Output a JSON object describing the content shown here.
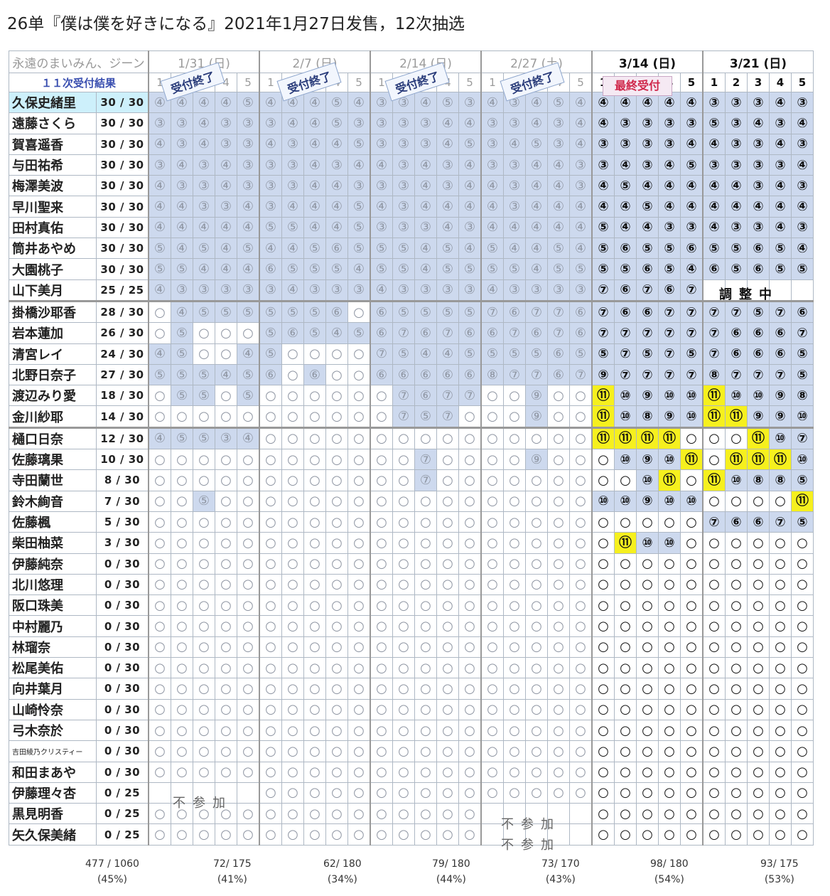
{
  "title": "26单『僕は僕を好きになる』2021年1月27日发售，12次抽选",
  "table": {
    "caption": "永遠のまいみん、ジーン",
    "header_label": "１１次受付結果",
    "dates": [
      "1/31 (日)",
      "2/7 (日)",
      "2/14 (日)",
      "2/27 (土)",
      "3/14 (日)",
      "3/21 (日)"
    ],
    "slots": [
      "1",
      "2",
      "3",
      "4",
      "5"
    ],
    "stamps": {
      "closed": "受付終了",
      "final": "最終受付"
    },
    "rows": [
      {
        "name": "久保史緒里",
        "count": "30 / 30",
        "hl": true,
        "cells": [
          "④④④④⑤",
          "④④④⑤④",
          "③③④⑤③",
          "④③④⑤④",
          "④④④④④",
          "③③③④③"
        ],
        "bg": [
          "BBBBB",
          "BBBBB",
          "BBBBB",
          "BBBBB",
          "BBBBB",
          "BBBBB"
        ]
      },
      {
        "name": "遠藤さくら",
        "count": "30 / 30",
        "cells": [
          "③③④③③",
          "③④④⑤③",
          "③③③④④",
          "③③④③④",
          "④③③③③",
          "⑤③④③④"
        ],
        "bg": [
          "BBBBB",
          "BBBBB",
          "BBBBB",
          "BBBBB",
          "BBBBB",
          "BBBBB"
        ]
      },
      {
        "name": "賀喜遥香",
        "count": "30 / 30",
        "cells": [
          "④③④③③",
          "④③④④⑤",
          "③③③④⑤",
          "③④⑤③④",
          "③③③③④",
          "④③③④③"
        ],
        "bg": [
          "BBBBB",
          "BBBBB",
          "BBBBB",
          "BBBBB",
          "BBBBB",
          "BBBBB"
        ]
      },
      {
        "name": "与田祐希",
        "count": "30 / 30",
        "cells": [
          "③④③④③",
          "③③④③④",
          "④③④③④",
          "③③④④③",
          "③④③④⑤",
          "③③③③④"
        ],
        "bg": [
          "BBBBB",
          "BBBBB",
          "BBBBB",
          "BBBBB",
          "BBBBB",
          "BBBBB"
        ]
      },
      {
        "name": "梅澤美波",
        "count": "30 / 30",
        "cells": [
          "④③③④③",
          "③③④④③",
          "③③④③④",
          "④③④④③",
          "④⑤④④④",
          "④④③④③"
        ],
        "bg": [
          "BBBBB",
          "BBBBB",
          "BBBBB",
          "BBBBB",
          "BBBBB",
          "BBBBB"
        ]
      },
      {
        "name": "早川聖来",
        "count": "30 / 30",
        "cells": [
          "④④③③④",
          "③④④④⑤",
          "④③④④④",
          "④③④④④",
          "④④⑤④④",
          "④④④④④"
        ],
        "bg": [
          "BBBBB",
          "BBBBB",
          "BBBBB",
          "BBBBB",
          "BBBBB",
          "BBBBB"
        ]
      },
      {
        "name": "田村真佑",
        "count": "30 / 30",
        "cells": [
          "④④④④④",
          "⑤⑤④④⑤",
          "③③③④③",
          "④④④④④",
          "⑤④④③③",
          "④③③④③"
        ],
        "bg": [
          "BBBBB",
          "BBBBB",
          "BBBBB",
          "BBBBB",
          "BBBBB",
          "BBBBB"
        ]
      },
      {
        "name": "筒井あやめ",
        "count": "30 / 30",
        "cells": [
          "⑤④⑤④⑤",
          "④④⑤⑥⑤",
          "⑤⑤④⑤④",
          "⑤④④⑤④",
          "⑤⑥⑤⑤⑥",
          "⑤⑤⑥⑤④"
        ],
        "bg": [
          "BBBBB",
          "BBBBB",
          "BBBBB",
          "BBBBB",
          "BBBBB",
          "BBBBB"
        ]
      },
      {
        "name": "大園桃子",
        "count": "30 / 30",
        "cells": [
          "⑤⑤④④④",
          "⑥⑤⑤⑤④",
          "⑤⑤④⑤⑤",
          "⑤⑤④⑤⑤",
          "⑤⑤⑥⑤④",
          "⑥⑤⑥⑤⑤"
        ],
        "bg": [
          "BBBBB",
          "BBBBB",
          "BBBBB",
          "BBBBB",
          "BBBBB",
          "BBBBB"
        ]
      },
      {
        "name": "山下美月",
        "count": "25 / 25",
        "cells": [
          "④③③③③",
          "③④③③③",
          "④③③③③",
          "④③③③③",
          "⑦⑥⑦⑥⑦",
          "     "
        ],
        "bg": [
          "BBBBB",
          "BBBBB",
          "BBBBB",
          "BBBBB",
          "BBBBB",
          "-----"
        ]
      },
      {
        "name": "掛橋沙耶香",
        "count": "28 / 30",
        "sep": true,
        "cells": [
          "○④⑤⑤⑤",
          "⑤⑤⑤⑥○",
          "⑥⑤⑤⑤⑤",
          "⑦⑥⑦⑦⑥",
          "⑦⑥⑥⑦⑦",
          "⑦⑦⑤⑦⑥"
        ],
        "bg": [
          "-BBBB",
          "BBBB-",
          "BBBBB",
          "BBBBB",
          "BBBBB",
          "BBBBB"
        ]
      },
      {
        "name": "岩本蓮加",
        "count": "26 / 30",
        "cells": [
          "○⑤○○○",
          "⑤⑥⑤④⑤",
          "⑥⑦⑥⑦⑥",
          "⑥⑦⑥⑦⑥",
          "⑦⑦⑦⑦⑦",
          "⑦⑥⑥⑥⑦"
        ],
        "bg": [
          "-B---",
          "BBBBB",
          "BBBBB",
          "BBBBB",
          "BBBBB",
          "BBBBB"
        ]
      },
      {
        "name": "清宮レイ",
        "count": "24 / 30",
        "cells": [
          "④⑤○○④",
          "⑤○○○○",
          "⑦⑤④④⑤",
          "⑤⑤⑤⑥⑤",
          "⑤⑦⑤⑦⑤",
          "⑦⑥⑥⑥⑤"
        ],
        "bg": [
          "BB--B",
          "B----",
          "BBBBB",
          "BBBBB",
          "BBBBB",
          "BBBBB"
        ]
      },
      {
        "name": "北野日奈子",
        "count": "27 / 30",
        "cells": [
          "⑤⑤⑤④⑤",
          "⑥○⑥○○",
          "⑥⑥⑥⑥⑥",
          "⑧⑦⑦⑥⑦",
          "⑨⑦⑦⑦⑦",
          "⑧⑦⑦⑦⑤"
        ],
        "bg": [
          "BBBBB",
          "B-B--",
          "BBBBB",
          "BBBBB",
          "BBBBB",
          "BBBBB"
        ]
      },
      {
        "name": "渡辺みり愛",
        "count": "18 / 30",
        "cells": [
          "○⑤⑤○⑤",
          "○○○○○",
          "○⑦⑥⑦⑦",
          "○○⑨○○",
          "⑪⑩⑨⑩⑩",
          "⑪⑩⑩⑨⑧"
        ],
        "bg": [
          "-BB-B",
          "-----",
          "-BBBB",
          "--B--",
          "YBBBB",
          "YBBBB"
        ]
      },
      {
        "name": "金川紗耶",
        "count": "14 / 30",
        "cells": [
          "○○○○○",
          "○○○○○",
          "○⑦⑤⑦○",
          "○○⑨○○",
          "⑪⑩⑧⑨⑩",
          "⑪⑪⑨⑨⑩"
        ],
        "bg": [
          "-----",
          "-----",
          "-BBB-",
          "--B--",
          "YBBBB",
          "YYBBB"
        ]
      },
      {
        "name": "樋口日奈",
        "count": "12 / 30",
        "sep": true,
        "cells": [
          "④⑤⑤③④",
          "○○○○○",
          "○○○○○",
          "○○○○○",
          "⑪⑪⑪⑪○",
          "○○⑪⑩⑦"
        ],
        "bg": [
          "BBBBB",
          "-----",
          "-----",
          "-----",
          "YYYY-",
          "--YBB"
        ]
      },
      {
        "name": "佐藤璃果",
        "count": "10 / 30",
        "cells": [
          "○○○○○",
          "○○○○○",
          "○○⑦○○",
          "○○⑨○○",
          "○⑩⑨⑩⑪",
          "○⑪⑪⑪⑩"
        ],
        "bg": [
          "-----",
          "-----",
          "--B--",
          "--B--",
          "-BBBY",
          "-YYYB"
        ]
      },
      {
        "name": "寺田蘭世",
        "count": "8 / 30",
        "cells": [
          "○○○○○",
          "○○○○○",
          "○○⑦○○",
          "○○○○○",
          "○○⑩⑪○",
          "⑪⑩⑧⑧⑤"
        ],
        "bg": [
          "-----",
          "-----",
          "--B--",
          "-----",
          "--BY-",
          "YBBBB"
        ]
      },
      {
        "name": "鈴木絢音",
        "count": "7 / 30",
        "cells": [
          "○○⑤○○",
          "○○○○○",
          "○○○○○",
          "○○○○○",
          "⑩⑩⑨⑩⑩",
          "○○○○⑪"
        ],
        "bg": [
          "--B--",
          "-----",
          "-----",
          "-----",
          "BBBBB",
          "----Y"
        ]
      },
      {
        "name": "佐藤楓",
        "count": "5 / 30",
        "cells": [
          "○○○○○",
          "○○○○○",
          "○○○○○",
          "○○○○○",
          "○○○○○",
          "⑦⑥⑥⑦⑤"
        ],
        "bg": [
          "-----",
          "-----",
          "-----",
          "-----",
          "-----",
          "BBBBB"
        ]
      },
      {
        "name": "柴田柚菜",
        "count": "3 / 30",
        "cells": [
          "○○○○○",
          "○○○○○",
          "○○○○○",
          "○○○○○",
          "○⑪⑩⑩○",
          "○○○○○"
        ],
        "bg": [
          "-----",
          "-----",
          "-----",
          "-----",
          "-YBB-",
          "-----"
        ]
      },
      {
        "name": "伊藤純奈",
        "count": "0 / 30",
        "cells": [
          "○○○○○",
          "○○○○○",
          "○○○○○",
          "○○○○○",
          "○○○○○",
          "○○○○○"
        ],
        "bg": [
          "-----",
          "-----",
          "-----",
          "-----",
          "-----",
          "-----"
        ]
      },
      {
        "name": "北川悠理",
        "count": "0 / 30",
        "cells": [
          "○○○○○",
          "○○○○○",
          "○○○○○",
          "○○○○○",
          "○○○○○",
          "○○○○○"
        ],
        "bg": [
          "-----",
          "-----",
          "-----",
          "-----",
          "-----",
          "-----"
        ]
      },
      {
        "name": "阪口珠美",
        "count": "0 / 30",
        "cells": [
          "○○○○○",
          "○○○○○",
          "○○○○○",
          "○○○○○",
          "○○○○○",
          "○○○○○"
        ],
        "bg": [
          "-----",
          "-----",
          "-----",
          "-----",
          "-----",
          "-----"
        ]
      },
      {
        "name": "中村麗乃",
        "count": "0 / 30",
        "cells": [
          "○○○○○",
          "○○○○○",
          "○○○○○",
          "○○○○○",
          "○○○○○",
          "○○○○○"
        ],
        "bg": [
          "-----",
          "-----",
          "-----",
          "-----",
          "-----",
          "-----"
        ]
      },
      {
        "name": "林瑠奈",
        "count": "0 / 30",
        "cells": [
          "○○○○○",
          "○○○○○",
          "○○○○○",
          "○○○○○",
          "○○○○○",
          "○○○○○"
        ],
        "bg": [
          "-----",
          "-----",
          "-----",
          "-----",
          "-----",
          "-----"
        ]
      },
      {
        "name": "松尾美佑",
        "count": "0 / 30",
        "cells": [
          "○○○○○",
          "○○○○○",
          "○○○○○",
          "○○○○○",
          "○○○○○",
          "○○○○○"
        ],
        "bg": [
          "-----",
          "-----",
          "-----",
          "-----",
          "-----",
          "-----"
        ]
      },
      {
        "name": "向井葉月",
        "count": "0 / 30",
        "cells": [
          "○○○○○",
          "○○○○○",
          "○○○○○",
          "○○○○○",
          "○○○○○",
          "○○○○○"
        ],
        "bg": [
          "-----",
          "-----",
          "-----",
          "-----",
          "-----",
          "-----"
        ]
      },
      {
        "name": "山崎怜奈",
        "count": "0 / 30",
        "cells": [
          "○○○○○",
          "○○○○○",
          "○○○○○",
          "○○○○○",
          "○○○○○",
          "○○○○○"
        ],
        "bg": [
          "-----",
          "-----",
          "-----",
          "-----",
          "-----",
          "-----"
        ]
      },
      {
        "name": "弓木奈於",
        "count": "0 / 30",
        "cells": [
          "○○○○○",
          "○○○○○",
          "○○○○○",
          "○○○○○",
          "○○○○○",
          "○○○○○"
        ],
        "bg": [
          "-----",
          "-----",
          "-----",
          "-----",
          "-----",
          "-----"
        ]
      },
      {
        "name": "吉田綾乃クリスティー",
        "count": "0 / 30",
        "small": true,
        "cells": [
          "○○○○○",
          "○○○○○",
          "○○○○○",
          "○○○○○",
          "○○○○○",
          "○○○○○"
        ],
        "bg": [
          "-----",
          "-----",
          "-----",
          "-----",
          "-----",
          "-----"
        ]
      },
      {
        "name": "和田まあや",
        "count": "0 / 30",
        "cells": [
          "○○○○○",
          "○○○○○",
          "○○○○○",
          "○○○○○",
          "○○○○○",
          "○○○○○"
        ],
        "bg": [
          "-----",
          "-----",
          "-----",
          "-----",
          "-----",
          "-----"
        ]
      },
      {
        "name": "伊藤理々杏",
        "count": "0 / 25",
        "cells": [
          "     ",
          "○○○○○",
          "○○○○○",
          "○○○○○",
          "○○○○○",
          "○○○○○"
        ],
        "bg": [
          "-----",
          "-----",
          "-----",
          "-----",
          "-----",
          "-----"
        ]
      },
      {
        "name": "黒見明香",
        "count": "0 / 25",
        "cells": [
          "○○○○○",
          "○○○○○",
          "○○○○○",
          "     ",
          "○○○○○",
          "○○○○○"
        ],
        "bg": [
          "-----",
          "-----",
          "-----",
          "-----",
          "-----",
          "-----"
        ]
      },
      {
        "name": "矢久保美緒",
        "count": "0 / 25",
        "cells": [
          "○○○○○",
          "○○○○○",
          "○○○○○",
          "     ",
          "○○○○○",
          "○○○○○"
        ],
        "bg": [
          "-----",
          "-----",
          "-----",
          "-----",
          "-----",
          "-----"
        ]
      }
    ],
    "overlays": {
      "adjusting": "調整中",
      "not_participating": "不参加"
    },
    "totals": [
      {
        "value": "477 / 1060",
        "pct": "(45%)"
      },
      {
        "value": "72/ 175",
        "pct": "(41%)"
      },
      {
        "value": "62/ 180",
        "pct": "(34%)"
      },
      {
        "value": "79/ 180",
        "pct": "(44%)"
      },
      {
        "value": "73/ 170",
        "pct": "(43%)"
      },
      {
        "value": "98/ 180",
        "pct": "(54%)"
      },
      {
        "value": "93/ 175",
        "pct": "(53%)"
      }
    ]
  },
  "colors": {
    "blue_fill": "#cdd9ee",
    "yellow_fill": "#f6f01e",
    "highlight_name": "#1a6fb8",
    "final_stamp": "#d0284b"
  }
}
